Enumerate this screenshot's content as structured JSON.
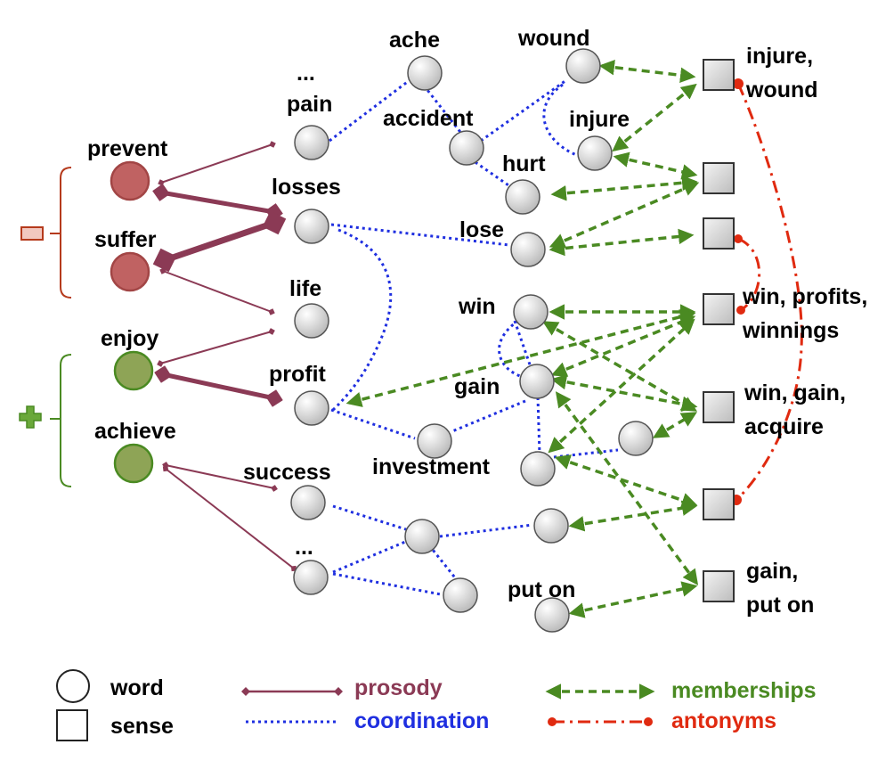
{
  "colors": {
    "prosody": "#8b3a55",
    "coordination": "#1f2fe0",
    "memberships": "#4a8a22",
    "antonyms": "#e02a10",
    "negative": "#b53a1c",
    "positive": "#4a8a22",
    "negative_node": "#c06262",
    "positive_node": "#8ea456"
  },
  "polarity": {
    "negative": "−",
    "positive": "+"
  },
  "words": {
    "prevent": "prevent",
    "suffer": "suffer",
    "enjoy": "enjoy",
    "achieve": "achieve",
    "ellipsis_top": "...",
    "pain": "pain",
    "losses": "losses",
    "life": "life",
    "profit": "profit",
    "success": "success",
    "ellipsis_bottom": "...",
    "ache": "ache",
    "accident": "accident",
    "wound": "wound",
    "injure": "injure",
    "hurt": "hurt",
    "lose": "lose",
    "win": "win",
    "gain": "gain",
    "investment": "investment",
    "put_on": "put on"
  },
  "senses": {
    "injure_wound": [
      "injure,",
      "wound"
    ],
    "win_profits": [
      "win, profits,",
      "winnings"
    ],
    "win_gain": [
      "win, gain,",
      "acquire"
    ],
    "gain_put_on": [
      "gain,",
      "put on"
    ]
  },
  "legend": {
    "word": "word",
    "sense": "sense",
    "prosody": "prosody",
    "coordination": "coordination",
    "memberships": "memberships",
    "antonyms": "antonyms"
  }
}
